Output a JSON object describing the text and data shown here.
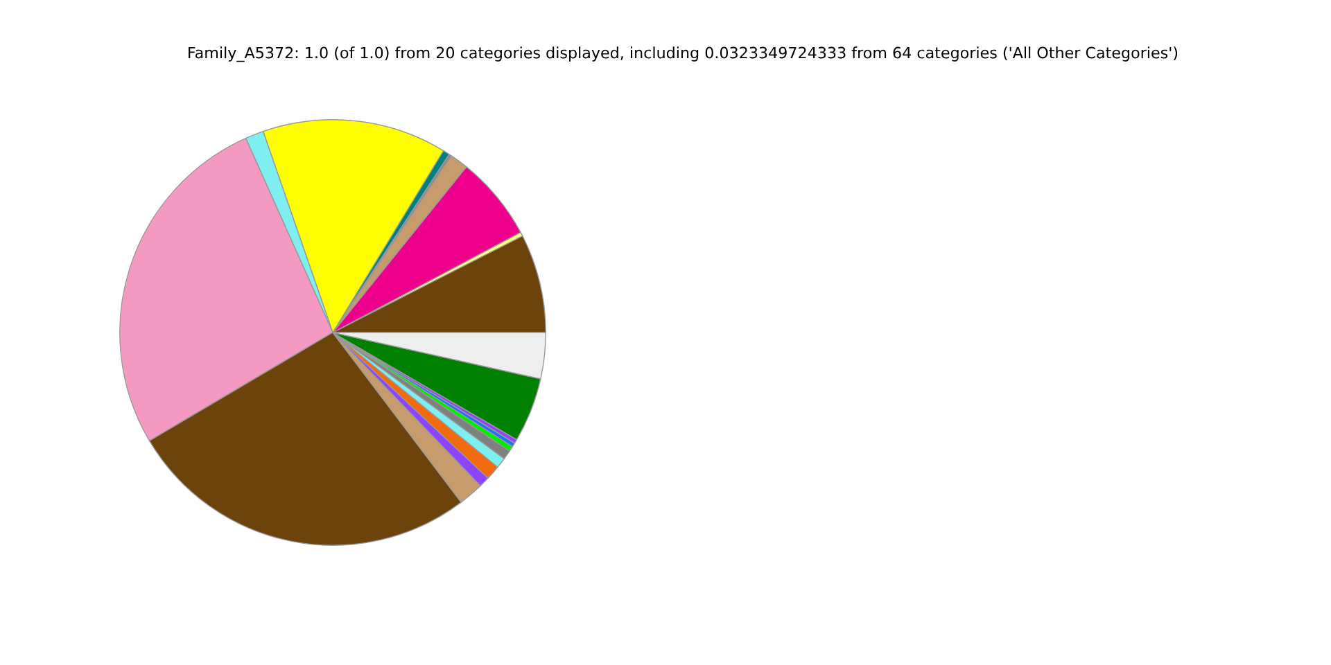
{
  "chart_data": {
    "type": "pie",
    "title": "Family_A5372: 1.0 (of 1.0) from 20 categories displayed, including 0.0323349724333 from 64 categories ('All Other Categories')",
    "categories": [
      null,
      null,
      null,
      null,
      null,
      null,
      null,
      null,
      null,
      null,
      null,
      null,
      null,
      null,
      null,
      null,
      null,
      null,
      null,
      null
    ],
    "values": [
      7.5,
      0.3,
      6.4,
      1.4,
      0.2,
      0.5,
      14.0,
      1.4,
      26.8,
      26.8,
      1.9,
      0.8,
      1.1,
      0.8,
      0.7,
      0.4,
      0.3,
      0.3,
      4.9,
      3.5
    ],
    "colors": [
      "#6b430b",
      "#ffff80",
      "#ec008c",
      "#c69c6d",
      "#8c8c8c",
      "#007f7f",
      "#ffff00",
      "#7eeef0",
      "#f49ac2",
      "#6b430b",
      "#c69c6d",
      "#8e44ff",
      "#f26c0f",
      "#7eeef0",
      "#808080",
      "#00ee00",
      "#1e6fff",
      "#8e44ff",
      "#008000",
      "#eeeeee"
    ],
    "legend": false
  }
}
